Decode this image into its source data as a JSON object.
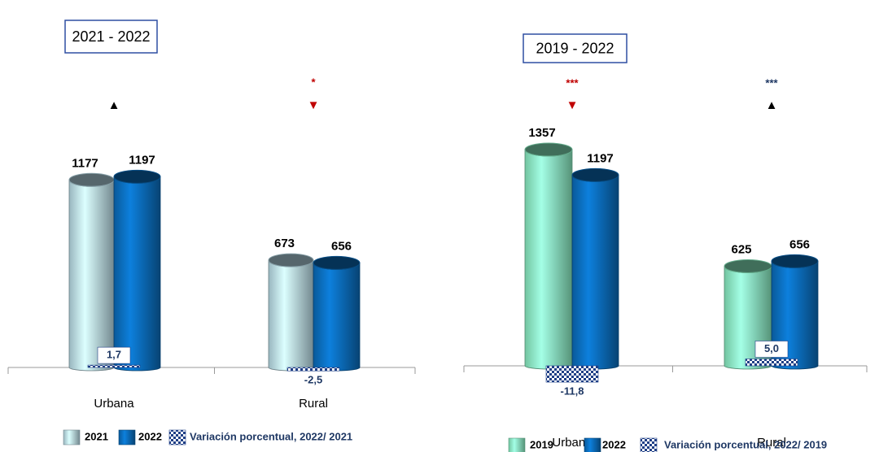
{
  "chart_data": [
    {
      "type": "cylinder_bar",
      "title": "2021 - 2022",
      "categories": [
        "Urbana",
        "Rural"
      ],
      "series": [
        {
          "name": "2021",
          "color": "#bfe3ef",
          "values": [
            1177,
            673
          ]
        },
        {
          "name": "2022",
          "color": "#0b6fc0",
          "values": [
            1197,
            656
          ]
        },
        {
          "name": "Variación porcentual, 2022/ 2021",
          "color": "#1f3f86",
          "values": [
            1.7,
            -2.5
          ],
          "value_labels": [
            "1,7",
            "-2,5"
          ]
        }
      ],
      "markers": [
        {
          "arrow": "▲",
          "arrow_color": "#000000"
        },
        {
          "stars": "*",
          "star_color": "#c00000",
          "arrow": "▼",
          "arrow_color": "#c00000"
        }
      ]
    },
    {
      "type": "cylinder_bar",
      "title": "2019 - 2022",
      "categories": [
        "Urbana",
        "Rural"
      ],
      "series": [
        {
          "name": "2019",
          "color": "#8ff5c8",
          "values": [
            1357,
            625
          ]
        },
        {
          "name": "2022",
          "color": "#0b6fc0",
          "values": [
            1197,
            656
          ]
        },
        {
          "name": "Variación porcentual, 2022/ 2019",
          "color": "#1f3f86",
          "values": [
            -11.8,
            5.0
          ],
          "value_labels": [
            "-11,8",
            "5,0"
          ]
        }
      ],
      "markers": [
        {
          "stars": "***",
          "star_color": "#c00000",
          "arrow": "▼",
          "arrow_color": "#c00000"
        },
        {
          "stars": "***",
          "star_color": "#1f3864",
          "arrow": "▲",
          "arrow_color": "#000000"
        }
      ]
    }
  ]
}
